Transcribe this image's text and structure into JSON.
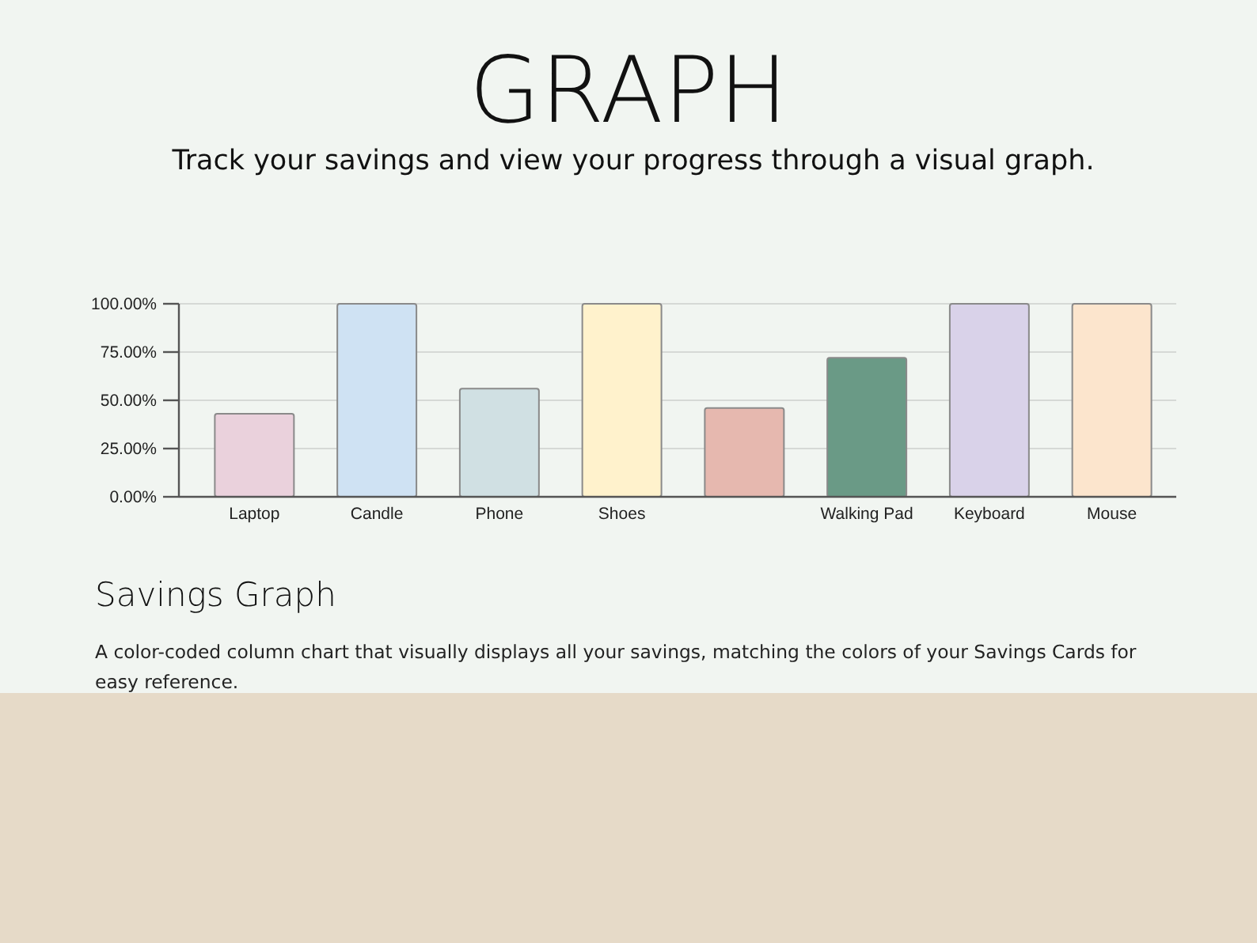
{
  "chart_data": {
    "type": "bar",
    "title": "GRAPH",
    "subtitle": "Track your savings and view your progress through a visual graph.",
    "categories": [
      "Laptop",
      "Candle",
      "Phone",
      "Shoes",
      null,
      "Walking Pad",
      "Keyboard",
      "Mouse"
    ],
    "values": [
      43,
      100,
      56,
      100,
      46,
      72,
      100,
      100
    ],
    "colors": [
      "#ead1dc",
      "#cfe2f3",
      "#d0e0e3",
      "#fff2cc",
      "#e6b8af",
      "#6a9a86",
      "#d9d2e9",
      "#fce5cd"
    ],
    "ylim": [
      0,
      100
    ],
    "yticks": [
      {
        "value": 0,
        "label": "0.00%"
      },
      {
        "value": 25,
        "label": "25.00%"
      },
      {
        "value": 50,
        "label": "50.00%"
      },
      {
        "value": 75,
        "label": "75.00%"
      },
      {
        "value": 100,
        "label": "100.00%"
      }
    ],
    "grid": "y",
    "annotations": [
      "Savings Graph",
      "A color-coded column chart that visually displays all your savings, matching the colors of your Savings Cards for easy reference."
    ]
  }
}
